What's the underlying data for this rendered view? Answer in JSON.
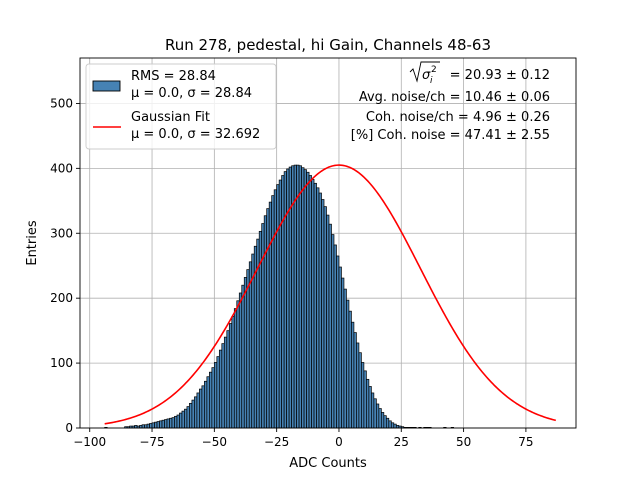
{
  "chart_data": {
    "type": "bar",
    "title": "Run 278, pedestal, hi Gain, Channels 48-63",
    "xlabel": "ADC Counts",
    "ylabel": "Entries",
    "xlim": [
      -103.9,
      95.1
    ],
    "ylim": [
      0,
      570
    ],
    "xticks": [
      -100,
      -75,
      -50,
      -25,
      0,
      25,
      50,
      75
    ],
    "xtick_labels": [
      "−100",
      "−75",
      "−50",
      "−25",
      "0",
      "25",
      "50",
      "75"
    ],
    "yticks": [
      0,
      100,
      200,
      300,
      400,
      500
    ],
    "ytick_labels": [
      "0",
      "100",
      "200",
      "300",
      "400",
      "500"
    ],
    "grid": true,
    "legend_position": "top-left",
    "series": [
      {
        "name": "RMS = 28.84",
        "name_line2": "μ = 0.0, σ = 28.84",
        "kind": "histogram",
        "color": "#4682b4",
        "edge_color": "#000000",
        "bin_width": 1,
        "x_start": -94,
        "values": [
          1,
          0,
          0,
          0,
          0,
          0,
          0,
          0,
          2,
          2,
          3,
          3,
          4,
          3,
          4,
          5,
          5,
          6,
          7,
          8,
          9,
          10,
          11,
          12,
          13,
          14,
          15,
          16,
          18,
          20,
          23,
          26,
          29,
          33,
          38,
          43,
          48,
          54,
          60,
          65,
          72,
          79,
          86,
          93,
          101,
          110,
          120,
          130,
          140,
          150,
          161,
          172,
          184,
          196,
          208,
          220,
          232,
          244,
          256,
          268,
          280,
          291,
          303,
          315,
          327,
          338,
          348,
          358,
          367,
          375,
          382,
          389,
          395,
          399,
          402,
          404,
          405,
          405,
          404,
          401,
          398,
          394,
          389,
          383,
          377,
          370,
          362,
          352,
          341,
          328,
          314,
          298,
          282,
          265,
          248,
          231,
          214,
          197,
          180,
          163,
          147,
          131,
          116,
          101,
          88,
          75,
          64,
          54,
          45,
          37,
          30,
          24,
          19,
          15,
          11,
          8,
          6,
          4,
          3,
          2,
          1,
          1,
          1,
          1,
          1,
          0,
          1,
          0,
          1,
          1,
          1,
          0,
          0,
          0,
          0,
          0,
          1,
          0,
          0,
          1,
          0,
          0,
          0,
          0,
          0,
          0,
          0,
          0,
          0,
          0,
          0,
          0,
          0,
          0,
          0,
          0,
          0,
          0,
          0,
          0,
          0,
          0,
          0,
          0,
          0,
          0,
          0,
          0,
          0,
          0,
          0,
          0,
          0,
          0,
          0,
          0,
          0,
          0,
          0,
          0,
          0,
          0,
          0,
          0,
          0,
          0,
          0,
          0
        ]
      },
      {
        "name": "Gaussian Fit",
        "name_line2": "μ = 0.0, σ = 32.692",
        "kind": "line",
        "color": "#ff0000",
        "mu": 0.0,
        "sigma": 32.692,
        "amplitude": 405,
        "x_range": [
          -94,
          87
        ]
      }
    ],
    "annotations": [
      {
        "label": "√(σᵢ²) = 20.93 ± 0.12",
        "symbol": "σ",
        "sub": "i",
        "sup": "2",
        "rest": " = 20.93 ± 0.12"
      },
      {
        "label": "Avg. noise/ch = 10.46 ± 0.06"
      },
      {
        "label": "Coh. noise/ch = 4.96 ± 0.26"
      },
      {
        "label": "[%] Coh. noise = 47.41 ± 2.55"
      }
    ]
  }
}
